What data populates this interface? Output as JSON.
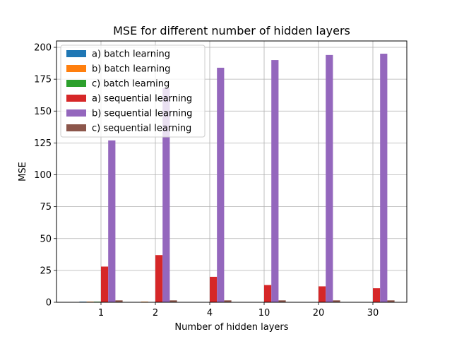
{
  "chart_data": {
    "type": "bar",
    "title": "MSE for different number of hidden layers",
    "xlabel": "Number of hidden layers",
    "ylabel": "MSE",
    "categories": [
      "1",
      "2",
      "4",
      "10",
      "20",
      "30"
    ],
    "ylim": [
      0,
      205
    ],
    "yticks": [
      0,
      25,
      50,
      75,
      100,
      125,
      150,
      175,
      200
    ],
    "grid": true,
    "legend_position": "top-left",
    "series": [
      {
        "name": "a) batch learning",
        "color": "#1f77b4",
        "values": [
          0.5,
          0,
          0,
          0,
          0,
          0
        ]
      },
      {
        "name": "b) batch learning",
        "color": "#ff7f0e",
        "values": [
          0.5,
          0.5,
          0,
          0,
          0,
          0
        ]
      },
      {
        "name": "c) batch learning",
        "color": "#2ca02c",
        "values": [
          0.5,
          0,
          0,
          0,
          0,
          0
        ]
      },
      {
        "name": "a) sequential learning",
        "color": "#d62728",
        "values": [
          28,
          37,
          20,
          13.5,
          12.5,
          11
        ]
      },
      {
        "name": "b) sequential learning",
        "color": "#9467bd",
        "values": [
          127,
          168,
          184,
          190,
          194,
          195
        ]
      },
      {
        "name": "c) sequential learning",
        "color": "#8c564b",
        "values": [
          1.5,
          1.5,
          1.5,
          1.5,
          1.5,
          1.5
        ]
      }
    ]
  }
}
